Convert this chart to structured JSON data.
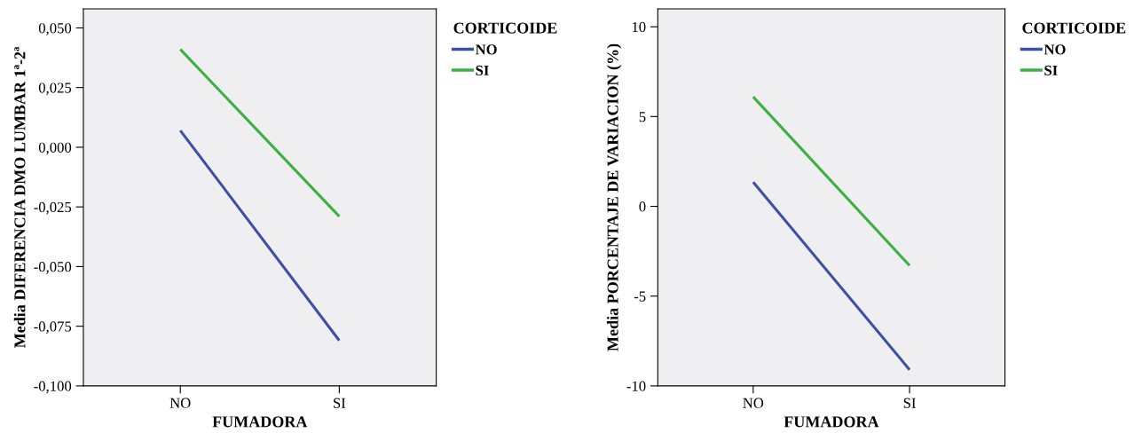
{
  "chart_data": [
    {
      "type": "line",
      "categories": [
        "NO",
        "SI"
      ],
      "xlabel": "FUMADORA",
      "ylabel": "Media DIFERENCIA DMO LUMBAR 1ª-2ª",
      "legend_title": "CORTICOIDE",
      "legend": "top right",
      "grid": false,
      "marker": "none",
      "ylim": [
        -0.1,
        0.058
      ],
      "yticks": [
        {
          "value": -0.1,
          "label": "-0,100"
        },
        {
          "value": -0.075,
          "label": "-0,075"
        },
        {
          "value": -0.05,
          "label": "-0,050"
        },
        {
          "value": -0.025,
          "label": "-0,025"
        },
        {
          "value": 0,
          "label": "0,000"
        },
        {
          "value": 0.025,
          "label": "0,025"
        },
        {
          "value": 0.05,
          "label": "0,050"
        }
      ],
      "series": [
        {
          "name": "NO",
          "color": "#3e4fa3",
          "values": [
            0.007,
            -0.081
          ]
        },
        {
          "name": "SI",
          "color": "#3cb043",
          "values": [
            0.041,
            -0.029
          ]
        }
      ]
    },
    {
      "type": "line",
      "categories": [
        "NO",
        "SI"
      ],
      "xlabel": "FUMADORA",
      "ylabel": "Media PORCENTAJE DE VARIACION (%)",
      "legend_title": "CORTICOIDE",
      "legend": "top right",
      "grid": false,
      "marker": "none",
      "ylim": [
        -10,
        11
      ],
      "yticks": [
        -10,
        -5,
        0,
        5,
        10
      ],
      "series": [
        {
          "name": "NO",
          "color": "#3e4fa3",
          "values": [
            1.35,
            -9.1
          ]
        },
        {
          "name": "SI",
          "color": "#3cb043",
          "values": [
            6.1,
            -3.3
          ]
        }
      ]
    }
  ]
}
